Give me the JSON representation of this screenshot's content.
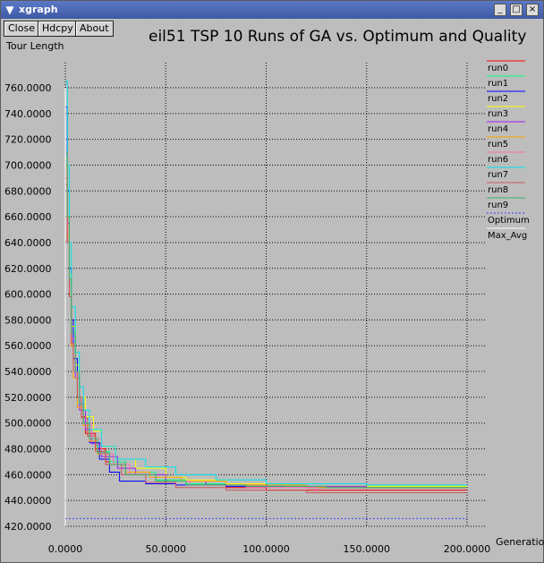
{
  "window": {
    "title": "xgraph",
    "menu_glyph": "▼",
    "minimize_glyph": "_",
    "maximize_glyph": "□",
    "close_glyph": "×"
  },
  "toolbar": {
    "close_label": "Close",
    "hdcpy_label": "Hdcpy",
    "about_label": "About"
  },
  "colors": {
    "background": "#bdbdbd",
    "grid": "#000000"
  },
  "chart_data": {
    "type": "line",
    "title": "eil51 TSP 10 Runs of GA vs. Optimum and Quality",
    "ylabel": "Tour Length",
    "xlabel": "Generation",
    "xlim": [
      0,
      200
    ],
    "ylim": [
      420,
      760
    ],
    "xticks": [
      0,
      50,
      100,
      150,
      200
    ],
    "xtick_labels": [
      "0.0000",
      "50.0000",
      "100.0000",
      "150.0000",
      "200.0000"
    ],
    "yticks": [
      420,
      440,
      460,
      480,
      500,
      520,
      540,
      560,
      580,
      600,
      620,
      640,
      660,
      680,
      700,
      720,
      740,
      760
    ],
    "ytick_labels": [
      "420.0000",
      "440.0000",
      "460.0000",
      "480.0000",
      "500.0000",
      "520.0000",
      "540.0000",
      "560.0000",
      "580.0000",
      "600.0000",
      "620.0000",
      "640.0000",
      "660.0000",
      "680.0000",
      "700.0000",
      "720.0000",
      "740.0000",
      "760.0000"
    ],
    "grid": true,
    "legend_position": "right",
    "series": [
      {
        "name": "run0",
        "color": "#ff0000",
        "x": [
          0,
          1,
          2,
          3,
          4,
          6,
          8,
          10,
          15,
          20,
          30,
          45,
          60,
          80,
          100,
          200
        ],
        "y": [
          690,
          640,
          600,
          560,
          540,
          520,
          505,
          492,
          480,
          470,
          460,
          455,
          452,
          450,
          448,
          448
        ]
      },
      {
        "name": "run1",
        "color": "#00ff7f",
        "x": [
          0,
          1,
          2,
          3,
          5,
          7,
          9,
          12,
          16,
          22,
          30,
          45,
          60,
          90,
          120,
          200
        ],
        "y": [
          700,
          650,
          610,
          575,
          540,
          515,
          500,
          488,
          478,
          470,
          462,
          456,
          453,
          452,
          451,
          451
        ]
      },
      {
        "name": "run2",
        "color": "#0000ff",
        "x": [
          0,
          1,
          2,
          3,
          4,
          6,
          9,
          12,
          17,
          22,
          27,
          40,
          55,
          80,
          120,
          200
        ],
        "y": [
          745,
          680,
          620,
          580,
          550,
          520,
          500,
          485,
          472,
          462,
          455,
          453,
          452,
          451,
          450,
          450
        ]
      },
      {
        "name": "run3",
        "color": "#ffff00",
        "x": [
          0,
          1,
          2,
          3,
          5,
          7,
          10,
          14,
          18,
          25,
          35,
          50,
          60,
          80,
          110,
          200
        ],
        "y": [
          705,
          660,
          615,
          575,
          545,
          520,
          505,
          494,
          482,
          472,
          465,
          458,
          456,
          453,
          451,
          451
        ]
      },
      {
        "name": "run4",
        "color": "#a020f0",
        "x": [
          0,
          1,
          2,
          3,
          5,
          7,
          10,
          13,
          18,
          26,
          35,
          50,
          70,
          100,
          150,
          200
        ],
        "y": [
          720,
          655,
          600,
          565,
          535,
          510,
          495,
          484,
          474,
          465,
          460,
          455,
          452,
          451,
          450,
          450
        ]
      },
      {
        "name": "run5",
        "color": "#ffa500",
        "x": [
          0,
          1,
          2,
          3,
          4,
          6,
          9,
          12,
          16,
          22,
          30,
          42,
          58,
          80,
          120,
          200
        ],
        "y": [
          700,
          645,
          600,
          560,
          535,
          512,
          498,
          486,
          476,
          468,
          462,
          458,
          455,
          452,
          450,
          450
        ]
      },
      {
        "name": "run6",
        "color": "#ff69b4",
        "x": [
          0,
          1,
          2,
          3,
          5,
          7,
          9,
          13,
          18,
          24,
          32,
          45,
          62,
          90,
          125,
          200
        ],
        "y": [
          695,
          650,
          605,
          565,
          540,
          515,
          500,
          488,
          476,
          468,
          460,
          455,
          452,
          450,
          446,
          446
        ]
      },
      {
        "name": "run7",
        "color": "#00e5ee",
        "x": [
          0,
          1,
          2,
          3,
          5,
          7,
          9,
          12,
          18,
          25,
          40,
          55,
          75,
          100,
          150,
          200
        ],
        "y": [
          765,
          700,
          640,
          590,
          555,
          528,
          510,
          495,
          482,
          472,
          466,
          460,
          456,
          453,
          452,
          452
        ]
      },
      {
        "name": "run8",
        "color": "#cd5555",
        "x": [
          0,
          1,
          2,
          3,
          4,
          6,
          8,
          11,
          15,
          20,
          28,
          40,
          55,
          80,
          120,
          200
        ],
        "y": [
          685,
          640,
          598,
          562,
          540,
          520,
          504,
          490,
          478,
          468,
          460,
          454,
          450,
          448,
          446,
          446
        ]
      },
      {
        "name": "run9",
        "color": "#3cb371",
        "x": [
          0,
          1,
          2,
          3,
          5,
          7,
          9,
          12,
          16,
          22,
          30,
          45,
          60,
          90,
          130,
          200
        ],
        "y": [
          710,
          660,
          612,
          570,
          540,
          515,
          500,
          488,
          477,
          468,
          460,
          455,
          452,
          451,
          450,
          450
        ]
      },
      {
        "name": "Optimum",
        "color": "#4040ff",
        "dashed": true,
        "x": [
          0,
          200
        ],
        "y": [
          426,
          426
        ]
      },
      {
        "name": "Max_Avg",
        "color": "#ffffff",
        "x": [
          0,
          0
        ],
        "y": [
          420,
          760
        ]
      }
    ]
  }
}
